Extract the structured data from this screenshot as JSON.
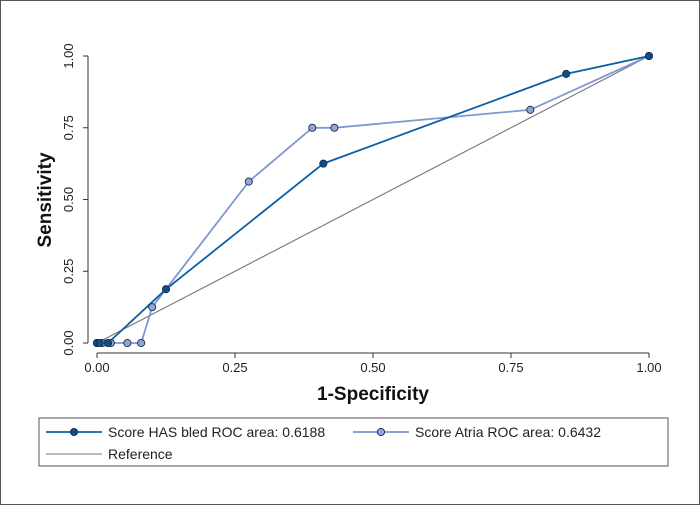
{
  "chart_data": {
    "type": "line",
    "xlabel": "1-Specificity",
    "ylabel": "Sensitivity",
    "xlim": [
      0,
      1
    ],
    "ylim": [
      0,
      1
    ],
    "x_ticks": [
      "0.00",
      "0.25",
      "0.50",
      "0.75",
      "1.00"
    ],
    "y_ticks": [
      "0.00",
      "0.25",
      "0.50",
      "0.75",
      "1.00"
    ],
    "legend_position": "bottom",
    "series": [
      {
        "name": "Score HAS bled ROC area: 0.6188",
        "color": "#0d5fa6",
        "marker_fill": "#0b4f8c",
        "x": [
          0.0,
          0.005,
          0.02,
          0.125,
          0.41,
          0.85,
          1.0
        ],
        "y": [
          0.0,
          0.0,
          0.0,
          0.1875,
          0.625,
          0.9375,
          1.0
        ]
      },
      {
        "name": "Score Atria ROC area: 0.6432",
        "color": "#7f97cf",
        "marker_fill": "#8fa6d8",
        "x": [
          0.0,
          0.01,
          0.025,
          0.055,
          0.08,
          0.1,
          0.275,
          0.39,
          0.43,
          0.785,
          1.0
        ],
        "y": [
          0.0,
          0.0,
          0.0,
          0.0,
          0.0,
          0.125,
          0.5625,
          0.75,
          0.75,
          0.8125,
          1.0
        ]
      },
      {
        "name": "Reference",
        "color": "#777777",
        "x": [
          0,
          1
        ],
        "y": [
          0,
          1
        ]
      }
    ]
  }
}
